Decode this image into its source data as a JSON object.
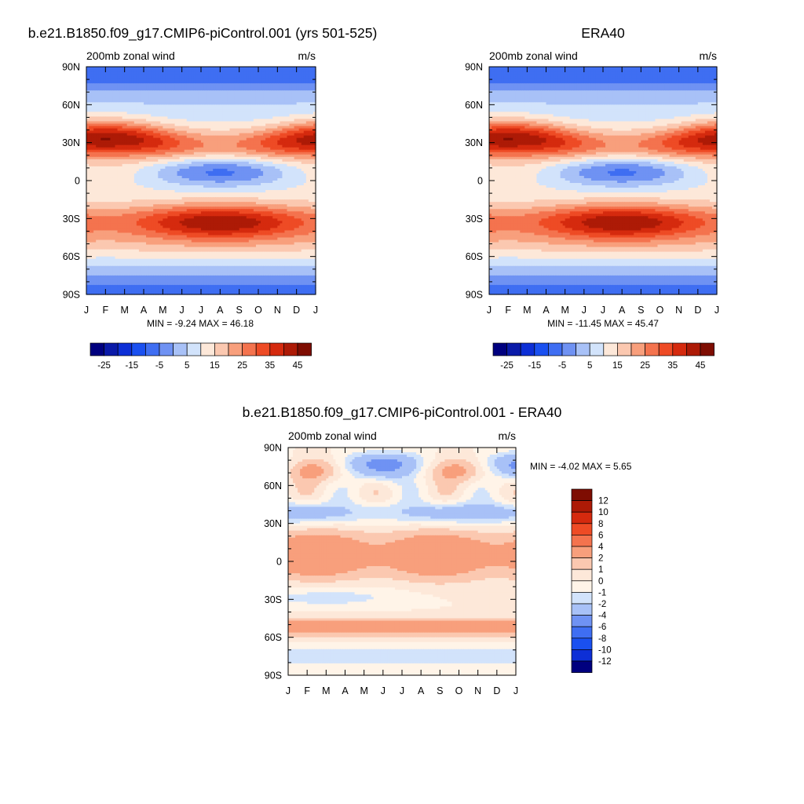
{
  "chart_data": [
    {
      "type": "heatmap",
      "title": "b.e21.B1850.f09_g17.CMIP6-piControl.001 (yrs 501-525)",
      "left_label": "200mb zonal wind",
      "right_label": "m/s",
      "x_ticks": [
        "J",
        "F",
        "M",
        "A",
        "M",
        "J",
        "J",
        "A",
        "S",
        "O",
        "N",
        "D",
        "J"
      ],
      "y_ticks": [
        "90N",
        "60N",
        "30N",
        "0",
        "30S",
        "60S",
        "90S"
      ],
      "stats": "MIN =  -9.24 MAX =  46.18",
      "colorbar": {
        "orientation": "horizontal",
        "tick_labels": [
          "-25",
          "-15",
          "-5",
          "5",
          "15",
          "25",
          "35",
          "45"
        ],
        "colors": [
          "#00007f",
          "#0a1aa8",
          "#0d2fd6",
          "#1a50f0",
          "#3f6ef2",
          "#6f92f3",
          "#a8c1f7",
          "#d2e3fb",
          "#fde8d9",
          "#fbc8b0",
          "#f89f7c",
          "#f4734e",
          "#ee4b25",
          "#d52a0e",
          "#ad1a06",
          "#7e0d02"
        ]
      },
      "features": {
        "jets": [
          {
            "lat": 30,
            "peak_month": 1,
            "value": 40
          },
          {
            "lat": -30,
            "peak_month": 7,
            "value": 46
          }
        ],
        "tropical_easterly_min": {
          "lat": 8,
          "month": 7,
          "value": -9
        }
      }
    },
    {
      "type": "heatmap",
      "title": "ERA40",
      "left_label": "200mb zonal wind",
      "right_label": "m/s",
      "x_ticks": [
        "J",
        "F",
        "M",
        "A",
        "M",
        "J",
        "J",
        "A",
        "S",
        "O",
        "N",
        "D",
        "J"
      ],
      "y_ticks": [
        "90N",
        "60N",
        "30N",
        "0",
        "30S",
        "60S",
        "90S"
      ],
      "stats": "MIN =  -11.45 MAX =  45.47",
      "colorbar": {
        "orientation": "horizontal",
        "tick_labels": [
          "-25",
          "-15",
          "-5",
          "5",
          "15",
          "25",
          "35",
          "45"
        ],
        "colors": [
          "#00007f",
          "#0a1aa8",
          "#0d2fd6",
          "#1a50f0",
          "#3f6ef2",
          "#6f92f3",
          "#a8c1f7",
          "#d2e3fb",
          "#fde8d9",
          "#fbc8b0",
          "#f89f7c",
          "#f4734e",
          "#ee4b25",
          "#d52a0e",
          "#ad1a06",
          "#7e0d02"
        ]
      },
      "features": {
        "jets": [
          {
            "lat": 30,
            "peak_month": 1,
            "value": 45
          },
          {
            "lat": -30,
            "peak_month": 7,
            "value": 40
          }
        ],
        "tropical_easterly_min": {
          "lat": 8,
          "month": 7,
          "value": -11
        }
      }
    },
    {
      "type": "heatmap",
      "title": "b.e21.B1850.f09_g17.CMIP6-piControl.001 - ERA40",
      "left_label": "200mb zonal wind",
      "right_label": "m/s",
      "x_ticks": [
        "J",
        "F",
        "M",
        "A",
        "M",
        "J",
        "J",
        "A",
        "S",
        "O",
        "N",
        "D",
        "J"
      ],
      "y_ticks": [
        "90N",
        "60N",
        "30N",
        "0",
        "30S",
        "60S",
        "90S"
      ],
      "stats": "MIN =  -4.02 MAX =   5.65",
      "colorbar": {
        "orientation": "vertical",
        "tick_labels": [
          "12",
          "10",
          "8",
          "6",
          "4",
          "2",
          "1",
          "0",
          "-1",
          "-2",
          "-4",
          "-6",
          "-8",
          "-10",
          "-12"
        ],
        "colors": [
          "#7e0d02",
          "#ad1a06",
          "#d52a0e",
          "#ee4b25",
          "#f4734e",
          "#f89f7c",
          "#fbc8b0",
          "#fde8d9",
          "#fff4e8",
          "#d2e3fb",
          "#a8c1f7",
          "#6f92f3",
          "#3f6ef2",
          "#1a50f0",
          "#0d2fd6",
          "#00007f"
        ]
      }
    }
  ]
}
